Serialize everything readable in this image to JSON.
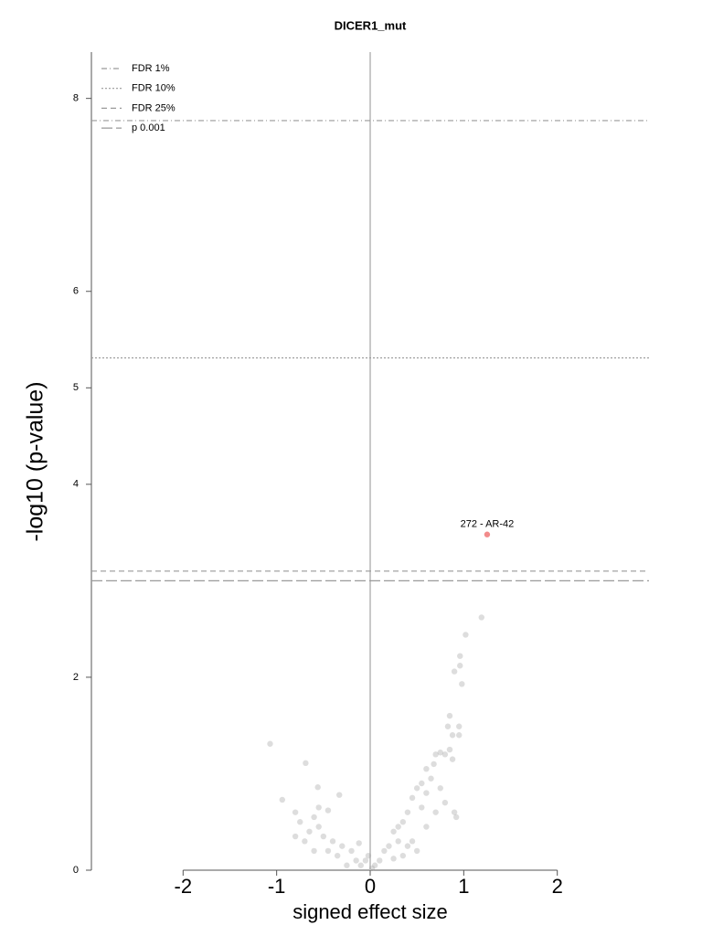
{
  "chart_data": {
    "type": "scatter",
    "title": "DICER1_mut",
    "x_label": "signed effect size",
    "y_label": "-log10 (p-value)",
    "xlim": [
      -2.98,
      2.98
    ],
    "xticks": [
      -2,
      -1,
      0,
      1,
      2
    ],
    "ylim": [
      0,
      8.48
    ],
    "yticks": [
      0,
      2,
      4,
      5,
      6,
      8
    ],
    "vline": 0,
    "hlines": [
      {
        "name": "FDR 1%",
        "y": 7.77,
        "dash": "dashdot"
      },
      {
        "name": "FDR 10%",
        "y": 5.31,
        "dash": "dotted"
      },
      {
        "name": "FDR 25%",
        "y": 3.1,
        "dash": "dashed"
      },
      {
        "name": "p 0.001",
        "y": 3.0,
        "dash": "longdash"
      }
    ],
    "legend": "upper left",
    "series": [
      {
        "color": "#9e9e9e",
        "x": [
          1.19,
          1.02,
          0.96,
          0.96,
          0.9,
          0.98,
          0.85,
          0.83,
          0.95,
          -1.07,
          -0.69,
          -0.94,
          -0.56,
          -0.33,
          0.85,
          0.8,
          0.75,
          0.7,
          0.68,
          0.6,
          0.65,
          0.55,
          0.6,
          0.5,
          0.45,
          0.55,
          0.4,
          0.35,
          0.3,
          0.25,
          0.3,
          0.2,
          0.15,
          0.1,
          0.05,
          0.02,
          0.45,
          0.5,
          0.35,
          0.25,
          0.9,
          0.92,
          0.8,
          0.75,
          0.88,
          0.95,
          0.88,
          0.7,
          0.6,
          0.4,
          -0.1,
          -0.05,
          -0.15,
          -0.2,
          -0.3,
          -0.35,
          -0.4,
          -0.45,
          -0.5,
          -0.55,
          -0.6,
          -0.65,
          -0.7,
          -0.75,
          -0.8,
          -0.55,
          -0.45,
          -0.25,
          -0.12,
          -0.02,
          -0.6,
          -0.8
        ],
        "values": [
          2.62,
          2.44,
          2.22,
          2.12,
          2.06,
          1.93,
          1.6,
          1.49,
          1.49,
          1.31,
          1.11,
          0.73,
          0.86,
          0.78,
          1.25,
          1.2,
          1.22,
          1.2,
          1.1,
          1.05,
          0.95,
          0.9,
          0.8,
          0.85,
          0.75,
          0.65,
          0.6,
          0.5,
          0.45,
          0.4,
          0.3,
          0.25,
          0.2,
          0.1,
          0.05,
          0.02,
          0.3,
          0.2,
          0.15,
          0.12,
          0.6,
          0.55,
          0.7,
          0.85,
          1.15,
          1.4,
          1.4,
          0.6,
          0.45,
          0.25,
          0.05,
          0.1,
          0.1,
          0.2,
          0.25,
          0.15,
          0.3,
          0.2,
          0.35,
          0.45,
          0.55,
          0.4,
          0.3,
          0.5,
          0.6,
          0.65,
          0.62,
          0.05,
          0.28,
          0.15,
          0.2,
          0.35
        ]
      },
      {
        "color": "#f28b8b",
        "label": "272 - AR-42",
        "x": [
          1.25
        ],
        "values": [
          3.48
        ]
      }
    ]
  }
}
